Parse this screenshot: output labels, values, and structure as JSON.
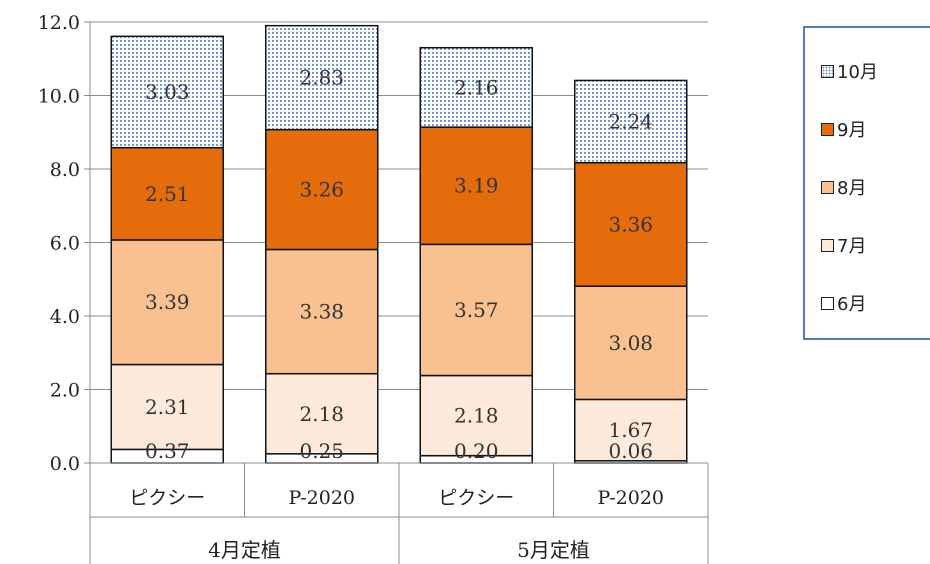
{
  "chart_data": {
    "type": "bar",
    "stacked": true,
    "title": "",
    "xlabel": "",
    "ylabel": "",
    "ylim": [
      0,
      12
    ],
    "yticks": [
      "0.0",
      "2.0",
      "4.0",
      "6.0",
      "8.0",
      "10.0",
      "12.0"
    ],
    "grid": true,
    "legend_position": "right",
    "groups": [
      "4月定植",
      "5月定植"
    ],
    "categories": [
      "ピクシー",
      "P-2020",
      "ピクシー",
      "P-2020"
    ],
    "series": [
      {
        "name": "6月",
        "values": [
          0.37,
          0.25,
          0.2,
          0.06
        ],
        "labels": [
          "0.37",
          "0.25",
          "0.20",
          "0.06"
        ],
        "color": "#ffffff"
      },
      {
        "name": "7月",
        "values": [
          2.31,
          2.18,
          2.18,
          1.67
        ],
        "labels": [
          "2.31",
          "2.18",
          "2.18",
          "1.67"
        ],
        "color": "#fdeada"
      },
      {
        "name": "8月",
        "values": [
          3.39,
          3.38,
          3.57,
          3.08
        ],
        "labels": [
          "3.39",
          "3.38",
          "3.57",
          "3.08"
        ],
        "color": "#f9c090"
      },
      {
        "name": "9月",
        "values": [
          2.51,
          3.26,
          3.19,
          3.36
        ],
        "labels": [
          "2.51",
          "3.26",
          "3.19",
          "3.36"
        ],
        "color": "#e46c0a"
      },
      {
        "name": "10月",
        "values": [
          3.03,
          2.83,
          2.16,
          2.24
        ],
        "labels": [
          "3.03",
          "2.83",
          "2.16",
          "2.24"
        ],
        "color": "#dbe6f4",
        "pattern": "dotted-blue"
      }
    ]
  }
}
